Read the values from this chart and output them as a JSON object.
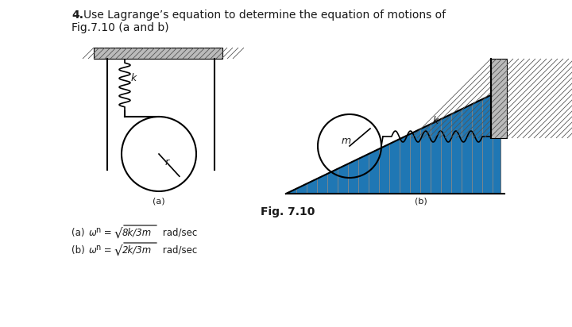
{
  "bg_color": "#ffffff",
  "text_color": "#1a1a1a",
  "title": "4.",
  "title_rest": "Use Lagrange’s equation to determine the equation of motions of",
  "subtitle": "Fig.7.10 (a and b)",
  "fig_label": "Fig. 7.10",
  "label_a": "(a)",
  "label_b": "(b)",
  "ans_a_pre": "(a) ω",
  "ans_a_sub": "n",
  "ans_a_eq": " = ",
  "ans_a_sqrt": "√",
  "ans_a_frac": "8k/3m",
  "ans_a_post": " rad/sec",
  "ans_b_pre": "(b) ω",
  "ans_b_sub": "n",
  "ans_b_eq": " = ",
  "ans_b_sqrt": "√",
  "ans_b_frac": "2k/3m",
  "ans_b_post": " rad/sec"
}
